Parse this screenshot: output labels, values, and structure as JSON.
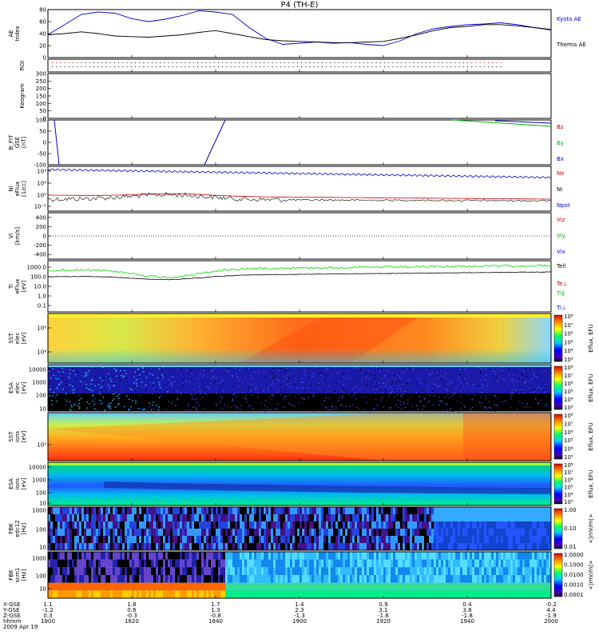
{
  "title": "P4 (TH-E)",
  "colors": {
    "blue": "#0000cc",
    "red": "#cc0000",
    "green": "#00b000",
    "black": "#000000",
    "bright_green": "#33dd33"
  },
  "chart_data": [
    {
      "type": "line",
      "panel": "ae",
      "ylabel": "AE Index",
      "ylim": [
        0,
        80
      ],
      "yticks": [
        "0",
        "20",
        "40",
        "60",
        "80"
      ],
      "series": [
        {
          "name": "Kyoto AE",
          "color": "#0000cc",
          "x": [
            0,
            2,
            4,
            6,
            8,
            10,
            12,
            14,
            16,
            18,
            20,
            22,
            24,
            26,
            28,
            30,
            32,
            34,
            36,
            38,
            40,
            42,
            44,
            46,
            48,
            50,
            52,
            54,
            56,
            58,
            60
          ],
          "y": [
            38,
            55,
            72,
            76,
            74,
            65,
            60,
            64,
            70,
            78,
            76,
            72,
            50,
            32,
            22,
            24,
            26,
            24,
            25,
            22,
            20,
            28,
            40,
            48,
            52,
            55,
            56,
            58,
            55,
            50,
            46
          ]
        },
        {
          "name": "Themis AE",
          "color": "#000000",
          "x": [
            0,
            2,
            4,
            6,
            8,
            10,
            12,
            14,
            16,
            18,
            20,
            22,
            24,
            26,
            28,
            30,
            32,
            34,
            36,
            38,
            40,
            42,
            44,
            46,
            48,
            50,
            52,
            54,
            56,
            58,
            60
          ],
          "y": [
            38,
            40,
            43,
            40,
            36,
            35,
            34,
            36,
            38,
            42,
            45,
            40,
            35,
            30,
            28,
            27,
            26,
            25,
            25,
            26,
            27,
            32,
            38,
            45,
            50,
            52,
            55,
            55,
            53,
            50,
            47
          ]
        }
      ]
    },
    {
      "type": "scatter",
      "panel": "roi",
      "ylabel": "ROI"
    },
    {
      "type": "table",
      "panel": "keogram",
      "ylabel": "Keogram",
      "ylim": [
        0,
        300
      ],
      "yticks": [
        "0",
        "50",
        "100",
        "150",
        "200",
        "250",
        "300"
      ]
    },
    {
      "type": "line",
      "panel": "bfield",
      "ylabel": "B_FIT GSE [nT]",
      "ylim": [
        -100,
        100
      ],
      "yticks": [
        "-100",
        "-50",
        "0",
        "50",
        "100"
      ],
      "series": [
        {
          "name": "Bz",
          "color": "#cc0000"
        },
        {
          "name": "By",
          "color": "#00b000"
        },
        {
          "name": "Bx",
          "color": "#0000cc"
        }
      ]
    },
    {
      "type": "line",
      "panel": "density",
      "ylabel": "Ni eFlux [1/cc]",
      "yticks": [
        "10⁻²",
        "10⁰",
        "10²",
        "10⁴"
      ],
      "series": [
        {
          "name": "Ne",
          "color": "#cc0000"
        },
        {
          "name": "Ni",
          "color": "#000000"
        },
        {
          "name": "Npot",
          "color": "#0000cc"
        }
      ]
    },
    {
      "type": "line",
      "panel": "velocity",
      "ylabel": "Vi [km/s]",
      "ylim": [
        -500,
        500
      ],
      "yticks": [
        "-400",
        "-200",
        "0",
        "200",
        "400"
      ],
      "series": [
        {
          "name": "Viz",
          "color": "#cc0000"
        },
        {
          "name": "Viy",
          "color": "#00b000"
        },
        {
          "name": "Vix",
          "color": "#0000cc"
        }
      ]
    },
    {
      "type": "line",
      "panel": "temperature",
      "ylabel": "Ti eFlux [eV]",
      "yticks": [
        "0.1",
        "1.0",
        "10.0",
        "100.0",
        "1000.0"
      ],
      "series": [
        {
          "name": "Tell",
          "color": "#000000"
        },
        {
          "name": "Te⊥",
          "color": "#cc0000"
        },
        {
          "name": "Ti∥",
          "color": "#00b000"
        },
        {
          "name": "Ti⊥",
          "color": "#0000cc"
        }
      ]
    },
    {
      "type": "heatmap",
      "panel": "sst_e",
      "ylabel": "SST elec [eV]",
      "yticks": [
        "10⁴",
        "10⁵"
      ],
      "colorbar_label": "Eflux, EFU",
      "colorbar_ticks": [
        "10³",
        "10⁴",
        "10⁵",
        "10⁶",
        "10⁷",
        "10⁸"
      ]
    },
    {
      "type": "heatmap",
      "panel": "esa_e",
      "ylabel": "ESA elec [eV]",
      "yticks": [
        "10",
        "100",
        "1000",
        "10000"
      ],
      "colorbar_label": "Eflux, EFU",
      "colorbar_ticks": [
        "10³",
        "10⁴",
        "10⁵",
        "10⁶",
        "10⁷",
        "10⁸"
      ]
    },
    {
      "type": "heatmap",
      "panel": "sst_i",
      "ylabel": "SST ions [eV]",
      "yticks": [
        "10⁵"
      ],
      "colorbar_label": "Eflux, EFU",
      "colorbar_ticks": [
        "10³",
        "10⁴",
        "10⁵",
        "10⁶",
        "10⁷",
        "10⁸"
      ]
    },
    {
      "type": "heatmap",
      "panel": "esa_i",
      "ylabel": "ESA ions [eV]",
      "yticks": [
        "10",
        "100",
        "1000",
        "10000"
      ],
      "colorbar_label": "Eflux, EFU",
      "colorbar_ticks": [
        "10³",
        "10⁴",
        "10⁵",
        "10⁶",
        "10⁷",
        "10⁸"
      ]
    },
    {
      "type": "heatmap",
      "panel": "fbk_e",
      "ylabel": "FBK edc12 [Hz]",
      "yticks": [
        "10",
        "100",
        "1000"
      ],
      "colorbar_label": "<|mV/m|>",
      "colorbar_ticks": [
        "0.01",
        "0.10",
        "1.00"
      ]
    },
    {
      "type": "heatmap",
      "panel": "fbk_b",
      "ylabel": "FBK scm1 [Hz]",
      "yticks": [
        "10",
        "100",
        "1000"
      ],
      "colorbar_label": "<|mV/m|>",
      "colorbar_ticks": [
        "0.0001",
        "0.0010",
        "0.0100",
        "0.1000",
        "1.0000"
      ]
    }
  ],
  "xaxis": {
    "row_labels": [
      "X-GSE",
      "Y-GSE",
      "Z-GSE",
      "hhmm",
      "2009 Apr 19"
    ],
    "columns": [
      {
        "values": [
          "1.1",
          "-1.2",
          "0.3",
          "1800"
        ]
      },
      {
        "values": [
          "1.8",
          "0.6",
          "-0.3",
          "1820"
        ]
      },
      {
        "values": [
          "1.7",
          "1.3",
          "-0.8",
          "1840"
        ]
      },
      {
        "values": [
          "1.4",
          "2.3",
          "-1.3",
          "1900"
        ]
      },
      {
        "values": [
          "0.9",
          "3.1",
          "-1.6",
          "1920"
        ]
      },
      {
        "values": [
          "0.4",
          "3.8",
          "-1.8",
          "1940"
        ]
      },
      {
        "values": [
          "-0.2",
          "4.4",
          "-1.9",
          "2000"
        ]
      }
    ]
  }
}
